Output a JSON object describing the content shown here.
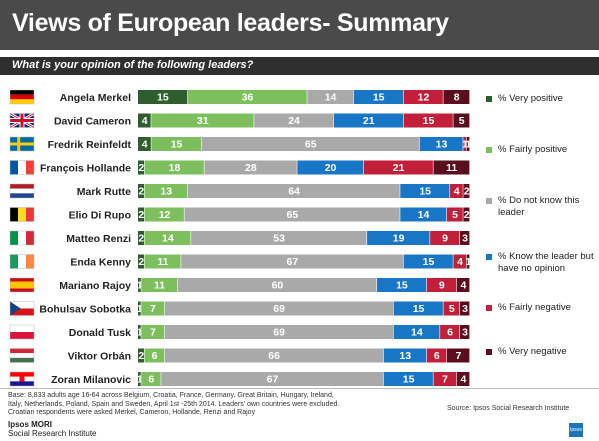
{
  "header": {
    "title": "Views of European leaders- Summary",
    "question": "What is your opinion of the following leaders?"
  },
  "colors": {
    "very_positive": "#2e5e2e",
    "fairly_positive": "#7cbf5c",
    "dont_know": "#a9a9a9",
    "no_opinion": "#1976c6",
    "fairly_negative": "#c21f3a",
    "very_negative": "#5a0e1e"
  },
  "legend": [
    {
      "key": "very_positive",
      "label": "% Very positive"
    },
    {
      "key": "fairly_positive",
      "label": "% Fairly positive"
    },
    {
      "key": "dont_know",
      "label": "% Do not know this leader"
    },
    {
      "key": "no_opinion",
      "label": "% Know the leader but have no opinion"
    },
    {
      "key": "fairly_negative",
      "label": "% Fairly negative"
    },
    {
      "key": "very_negative",
      "label": "% Very negative"
    }
  ],
  "chart_data": {
    "type": "bar",
    "orientation": "horizontal-stacked-100",
    "categories": [
      "Angela Merkel",
      "David Cameron",
      "Fredrik Reinfeldt",
      "François Hollande",
      "Mark Rutte",
      "Elio Di Rupo",
      "Matteo Renzi",
      "Enda Kenny",
      "Mariano Rajoy",
      "Bohulsav Sobotka",
      "Donald Tusk",
      "Viktor Orbán",
      "Zoran Milanovic"
    ],
    "flags": [
      "germany-flag-icon",
      "uk-flag-icon",
      "sweden-flag-icon",
      "france-flag-icon",
      "netherlands-flag-icon",
      "belgium-flag-icon",
      "italy-flag-icon",
      "ireland-flag-icon",
      "spain-flag-icon",
      "czech-flag-icon",
      "poland-flag-icon",
      "hungary-flag-icon",
      "croatia-flag-icon"
    ],
    "series": [
      {
        "name": "% Very positive",
        "key": "very_positive",
        "values": [
          15,
          4,
          4,
          2,
          2,
          2,
          2,
          2,
          1,
          1,
          1,
          2,
          1
        ]
      },
      {
        "name": "% Fairly positive",
        "key": "fairly_positive",
        "values": [
          36,
          31,
          15,
          18,
          13,
          12,
          14,
          11,
          11,
          7,
          7,
          6,
          6
        ]
      },
      {
        "name": "% Do not know this leader",
        "key": "dont_know",
        "values": [
          14,
          24,
          65,
          28,
          64,
          65,
          53,
          67,
          60,
          69,
          69,
          66,
          67
        ]
      },
      {
        "name": "% Know the leader but have no opinion",
        "key": "no_opinion",
        "values": [
          15,
          21,
          13,
          20,
          15,
          14,
          19,
          15,
          15,
          15,
          14,
          13,
          15
        ]
      },
      {
        "name": "% Fairly negative",
        "key": "fairly_negative",
        "values": [
          12,
          15,
          1,
          21,
          4,
          5,
          9,
          4,
          9,
          5,
          6,
          6,
          7
        ]
      },
      {
        "name": "% Very negative",
        "key": "very_negative",
        "values": [
          8,
          5,
          1,
          11,
          2,
          2,
          3,
          1,
          4,
          3,
          3,
          7,
          4
        ]
      }
    ]
  },
  "footnote": [
    "Base: 8,833 adults age 16-64 across Belgium, Croatia, France, Germany, Great Britain, Hungary, Ireland,",
    "Italy, Netherlands, Poland, Spain and Sweden, April 1st -25th 2014. Leaders' own countries were excluded.",
    "Croatian respondents were asked Merkel, Cameron, Hollande, Renzi and Rajoy"
  ],
  "source": "Source: Ipsos Social Research Institute",
  "brand": {
    "line1": "Ipsos MORI",
    "line2": "Social Research Institute",
    "logo": "Ipsos"
  }
}
